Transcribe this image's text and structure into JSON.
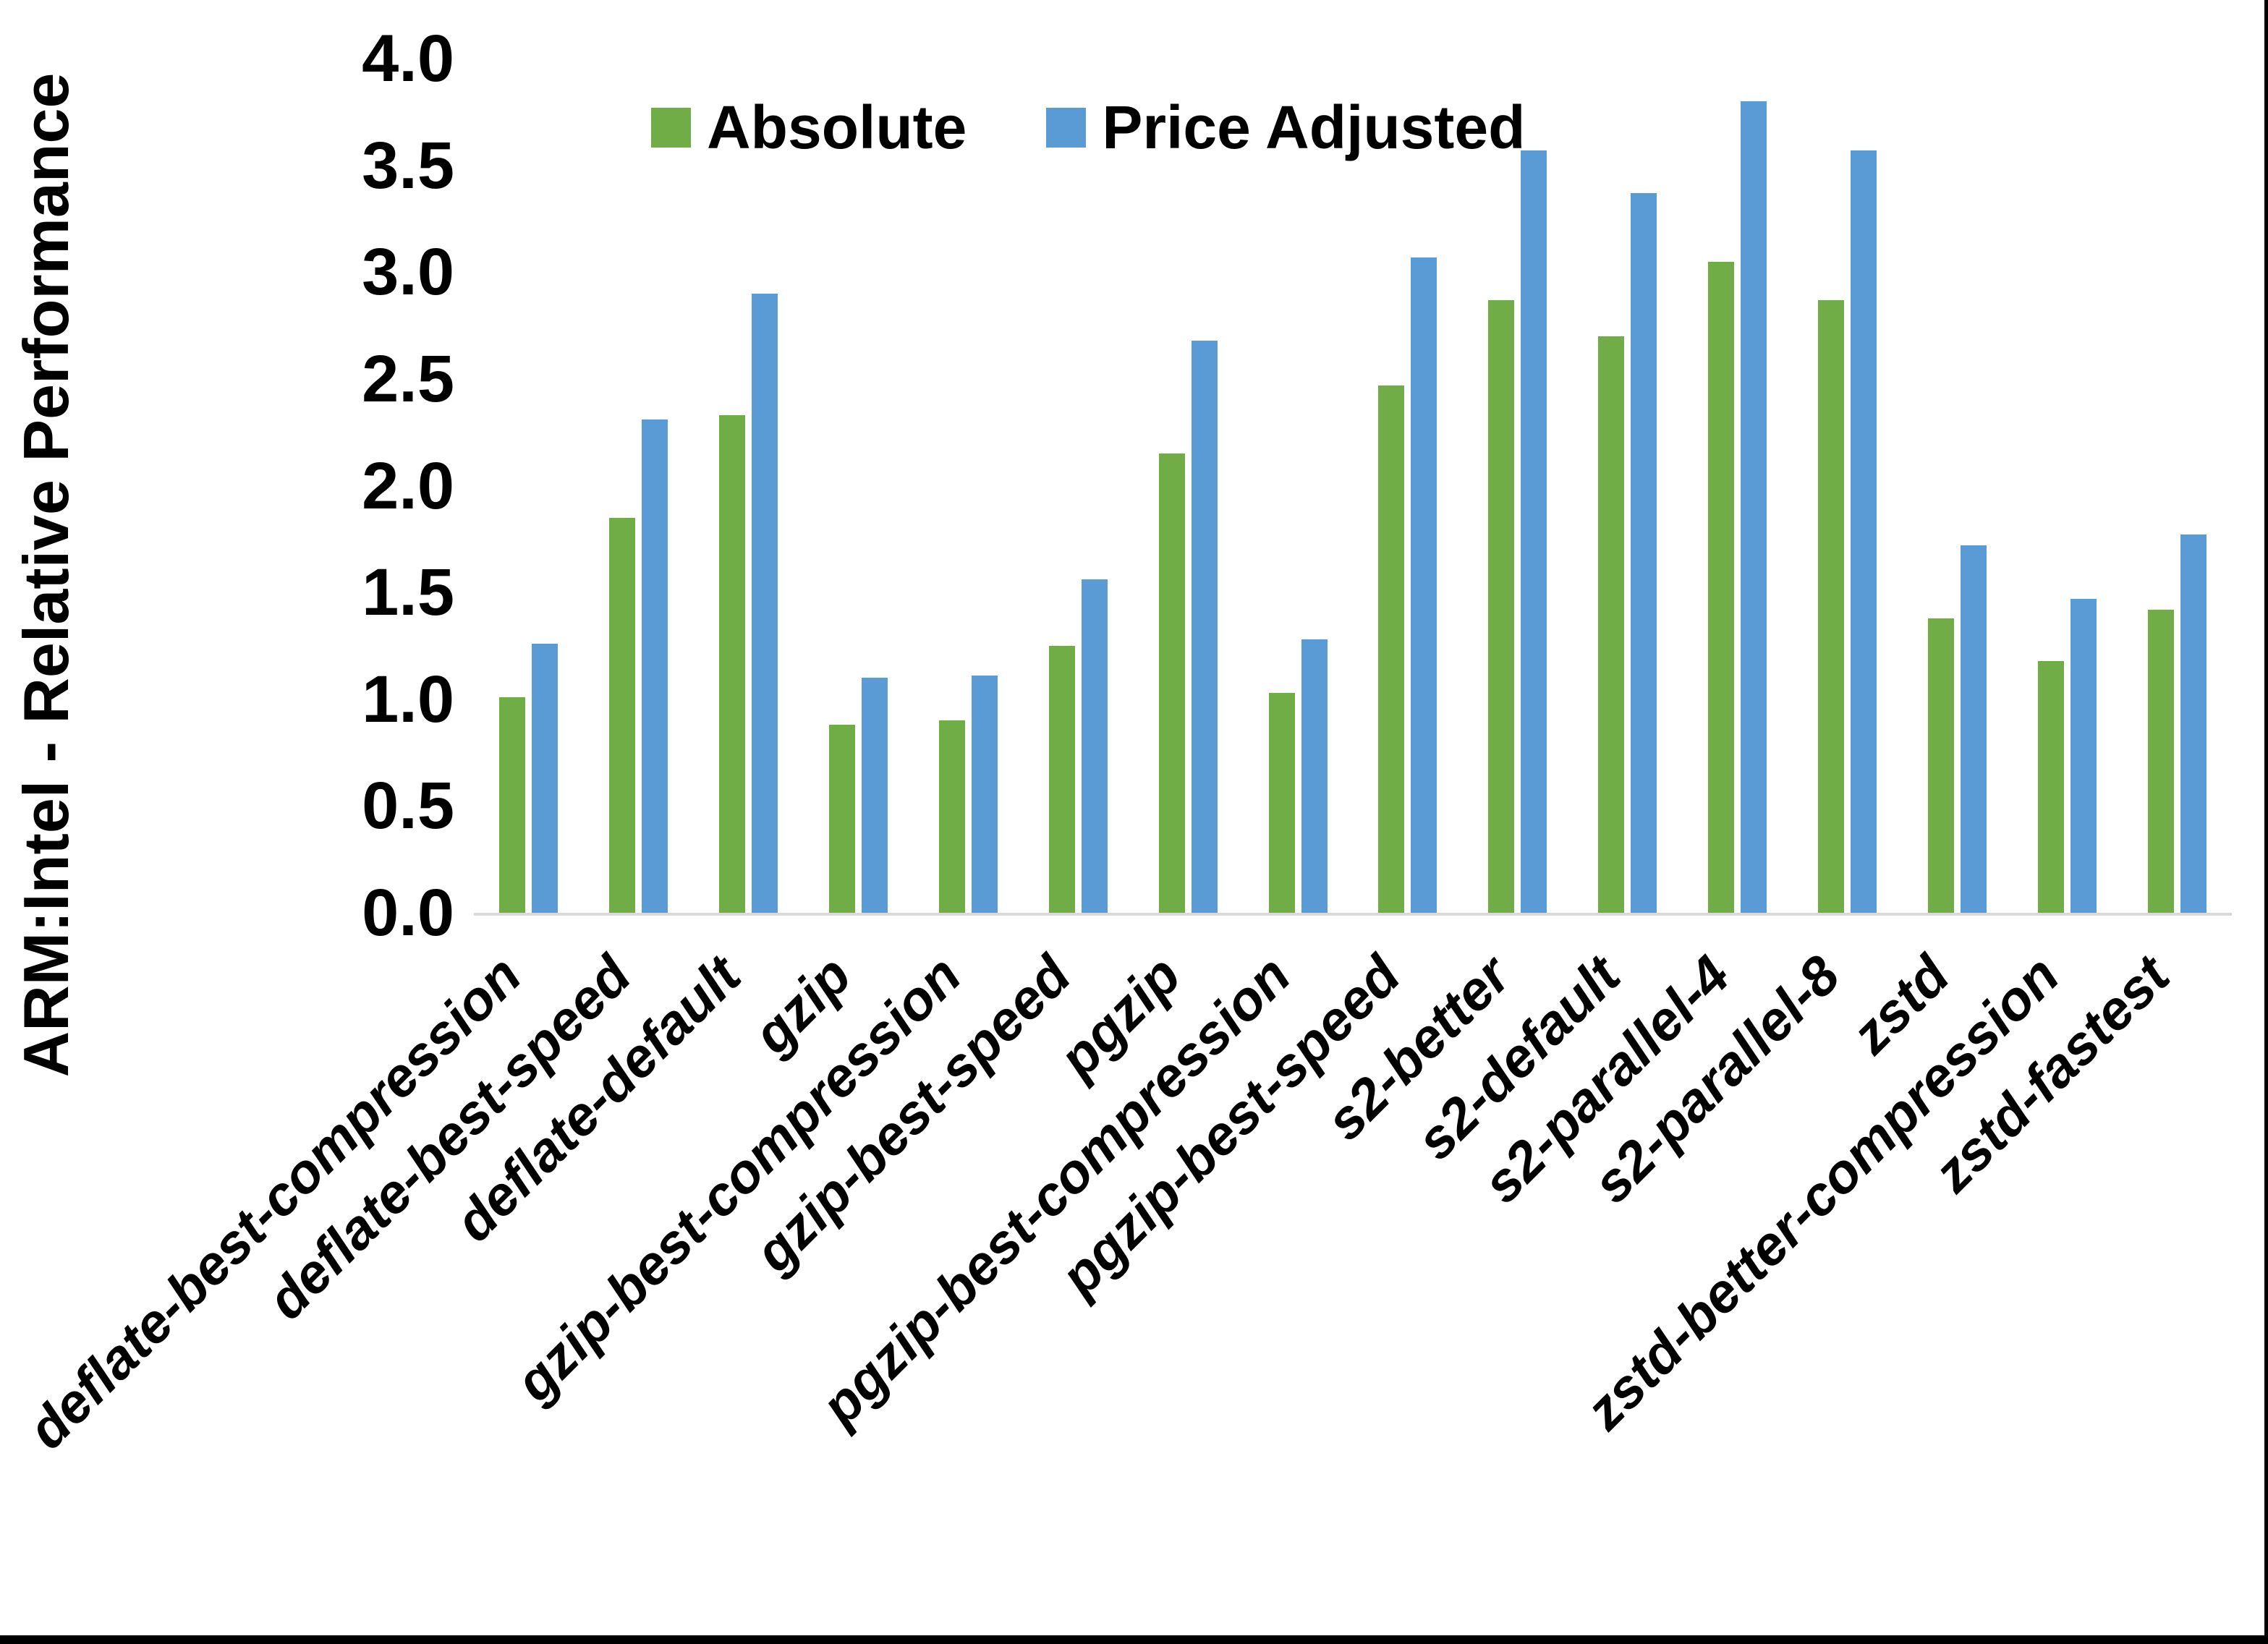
{
  "chart_data": {
    "type": "bar",
    "title": "",
    "xlabel": "",
    "ylabel": "ARM:Intel - Relative Performance",
    "ylim": [
      0.0,
      4.0
    ],
    "ytick_step": 0.5,
    "ytick_labels": [
      "4.0",
      "3.5",
      "3.0",
      "2.5",
      "2.0",
      "1.5",
      "1.0",
      "0.5",
      "0.0"
    ],
    "grid": "off",
    "legend_position": "top-center-inside",
    "categories": [
      "deflate-best-compression",
      "deflate-best-speed",
      "deflate-default",
      "gzip",
      "gzip-best-compression",
      "gzip-best-speed",
      "pgzip",
      "pgzip-best-compression",
      "pgzip-best-speed",
      "s2-better",
      "s2-default",
      "s2-parallel-4",
      "s2-parallel-8",
      "zstd",
      "zstd-better-compression",
      "zstd-fastest"
    ],
    "series": [
      {
        "name": "Absolute",
        "color": "#70AD47",
        "values": [
          1.01,
          1.85,
          2.33,
          0.88,
          0.9,
          1.25,
          2.15,
          1.03,
          2.47,
          2.87,
          2.7,
          3.05,
          2.87,
          1.38,
          1.18,
          1.42
        ]
      },
      {
        "name": "Price Adjusted",
        "color": "#5B9BD5",
        "values": [
          1.26,
          2.31,
          2.9,
          1.1,
          1.11,
          1.56,
          2.68,
          1.28,
          3.07,
          3.57,
          3.37,
          3.8,
          3.57,
          1.72,
          1.47,
          1.77
        ]
      }
    ]
  },
  "colors": {
    "background": "#FFFFFF",
    "axis_line": "#D9D9D9",
    "border": "#000000",
    "text": "#000000"
  }
}
